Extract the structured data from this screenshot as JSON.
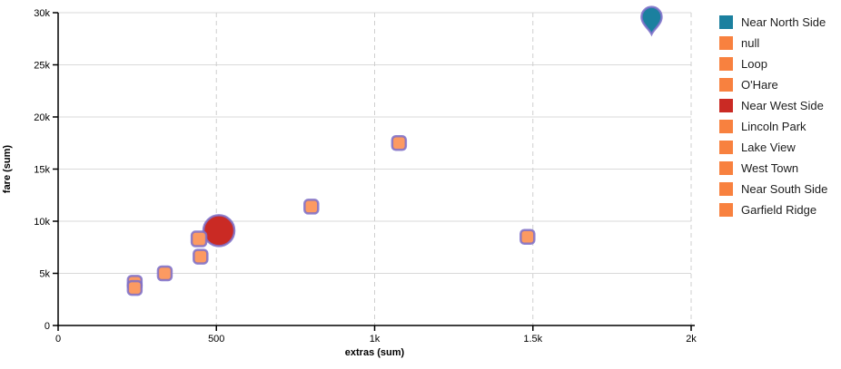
{
  "colors": {
    "teal": "#1b809f",
    "orange_legend": "#f8813f",
    "orange_marker_fill": "#fc9a62",
    "red": "#ca2a24",
    "marker_stroke": "#7d6fc9",
    "grid_solid": "#d9d9d9",
    "grid_dashed": "#cfcfcf",
    "axis": "#000000",
    "legend_text": "#1c1c1c",
    "background": "#ffffff"
  },
  "legend": {
    "items": [
      {
        "label": "Near North Side",
        "color": "#1b809f"
      },
      {
        "label": "null",
        "color": "#f8813f"
      },
      {
        "label": "Loop",
        "color": "#f8813f"
      },
      {
        "label": "O'Hare",
        "color": "#f8813f"
      },
      {
        "label": "Near West Side",
        "color": "#ca2a24"
      },
      {
        "label": "Lincoln Park",
        "color": "#f8813f"
      },
      {
        "label": "Lake View",
        "color": "#f8813f"
      },
      {
        "label": "West Town",
        "color": "#f8813f"
      },
      {
        "label": "Near South Side",
        "color": "#f8813f"
      },
      {
        "label": "Garfield Ridge",
        "color": "#f8813f"
      }
    ]
  },
  "chart_data": {
    "type": "scatter",
    "title": "",
    "xlabel": "extras (sum)",
    "ylabel": "fare (sum)",
    "xlim": [
      0,
      2000
    ],
    "ylim": [
      0,
      30000
    ],
    "x_ticks": {
      "values": [
        0,
        500,
        1000,
        1500,
        2000
      ],
      "labels": [
        "0",
        "500",
        "1k",
        "1.5k",
        "2k"
      ]
    },
    "y_ticks": {
      "values": [
        0,
        5000,
        10000,
        15000,
        20000,
        25000,
        30000
      ],
      "labels": [
        "0",
        "5k",
        "10k",
        "15k",
        "20k",
        "25k",
        "30k"
      ]
    },
    "grid": {
      "horizontal": "solid",
      "vertical": "dashed"
    },
    "legend_position": "right",
    "points": [
      {
        "name": "Near North Side",
        "x": 1875,
        "y": 29600,
        "shape": "pin",
        "size": 22,
        "fill": "#1b809f"
      },
      {
        "name": "null",
        "x": 1077,
        "y": 17500,
        "shape": "square",
        "size": 15,
        "fill": "#fc9a62"
      },
      {
        "name": "Loop",
        "x": 800,
        "y": 11400,
        "shape": "square",
        "size": 15,
        "fill": "#fc9a62"
      },
      {
        "name": "O'Hare",
        "x": 1483,
        "y": 8500,
        "shape": "square",
        "size": 15,
        "fill": "#fc9a62"
      },
      {
        "name": "Near West Side",
        "x": 508,
        "y": 9100,
        "shape": "circle",
        "size": 34,
        "fill": "#ca2a24"
      },
      {
        "name": "Lincoln Park",
        "x": 445,
        "y": 8300,
        "shape": "square",
        "size": 16,
        "fill": "#fc9a62"
      },
      {
        "name": "Lake View",
        "x": 450,
        "y": 6600,
        "shape": "square",
        "size": 15,
        "fill": "#fc9a62"
      },
      {
        "name": "West Town",
        "x": 337,
        "y": 5000,
        "shape": "square",
        "size": 15,
        "fill": "#fc9a62"
      },
      {
        "name": "Near South Side",
        "x": 242,
        "y": 4100,
        "shape": "square",
        "size": 15,
        "fill": "#fc9a62"
      },
      {
        "name": "Garfield Ridge",
        "x": 242,
        "y": 3600,
        "shape": "square",
        "size": 15,
        "fill": "#fc9a62"
      }
    ],
    "marker_stroke": "#7d6fc9"
  }
}
